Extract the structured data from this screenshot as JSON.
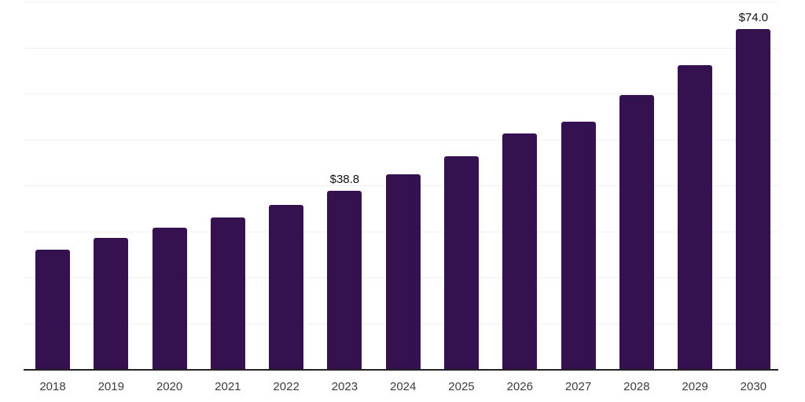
{
  "chart_data": {
    "type": "bar",
    "title": "",
    "xlabel": "",
    "ylabel": "",
    "categories": [
      "2018",
      "2019",
      "2020",
      "2021",
      "2022",
      "2023",
      "2024",
      "2025",
      "2026",
      "2027",
      "2028",
      "2029",
      "2030"
    ],
    "values": [
      26.0,
      28.6,
      30.7,
      33.0,
      35.8,
      38.8,
      42.4,
      46.3,
      51.2,
      53.9,
      59.7,
      66.2,
      74.0
    ],
    "point_labels": {
      "2023": "$38.8",
      "2030": "$74.0"
    },
    "ylim": [
      0,
      80
    ],
    "gridline_step": 10,
    "grid": true,
    "legend": "none",
    "colors": {
      "bar": "#36114f",
      "gridline": "#f0f0f0",
      "axis_line": "#222222",
      "value_label": "#111111",
      "tick_label": "#3c3c3c",
      "background": "#ffffff"
    }
  }
}
